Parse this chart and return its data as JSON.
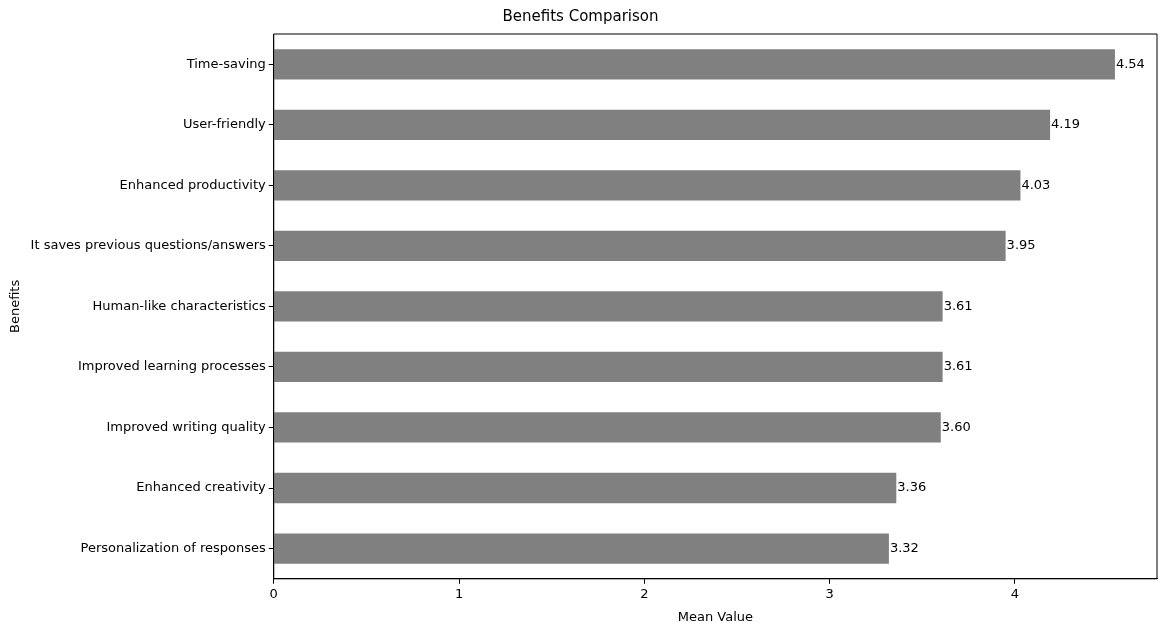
{
  "chart_data": {
    "type": "bar",
    "orientation": "horizontal",
    "title": "Benefits Comparison",
    "xlabel": "Mean Value",
    "ylabel": "Benefits",
    "categories": [
      "Time-saving",
      "User-friendly",
      "Enhanced productivity",
      "It saves previous questions/answers",
      "Human-like characteristics",
      "Improved learning processes",
      "Improved writing quality",
      "Enhanced creativity",
      "Personalization of responses"
    ],
    "values": [
      4.54,
      4.19,
      4.03,
      3.95,
      3.61,
      3.61,
      3.6,
      3.36,
      3.32
    ],
    "value_labels": [
      "4.54",
      "4.19",
      "4.03",
      "3.95",
      "3.61",
      "3.61",
      "3.60",
      "3.36",
      "3.32"
    ],
    "color": "#808080",
    "xlim": [
      0,
      4.767
    ],
    "xticks": [
      0,
      1,
      2,
      3,
      4
    ],
    "grid": false,
    "legend": false
  }
}
